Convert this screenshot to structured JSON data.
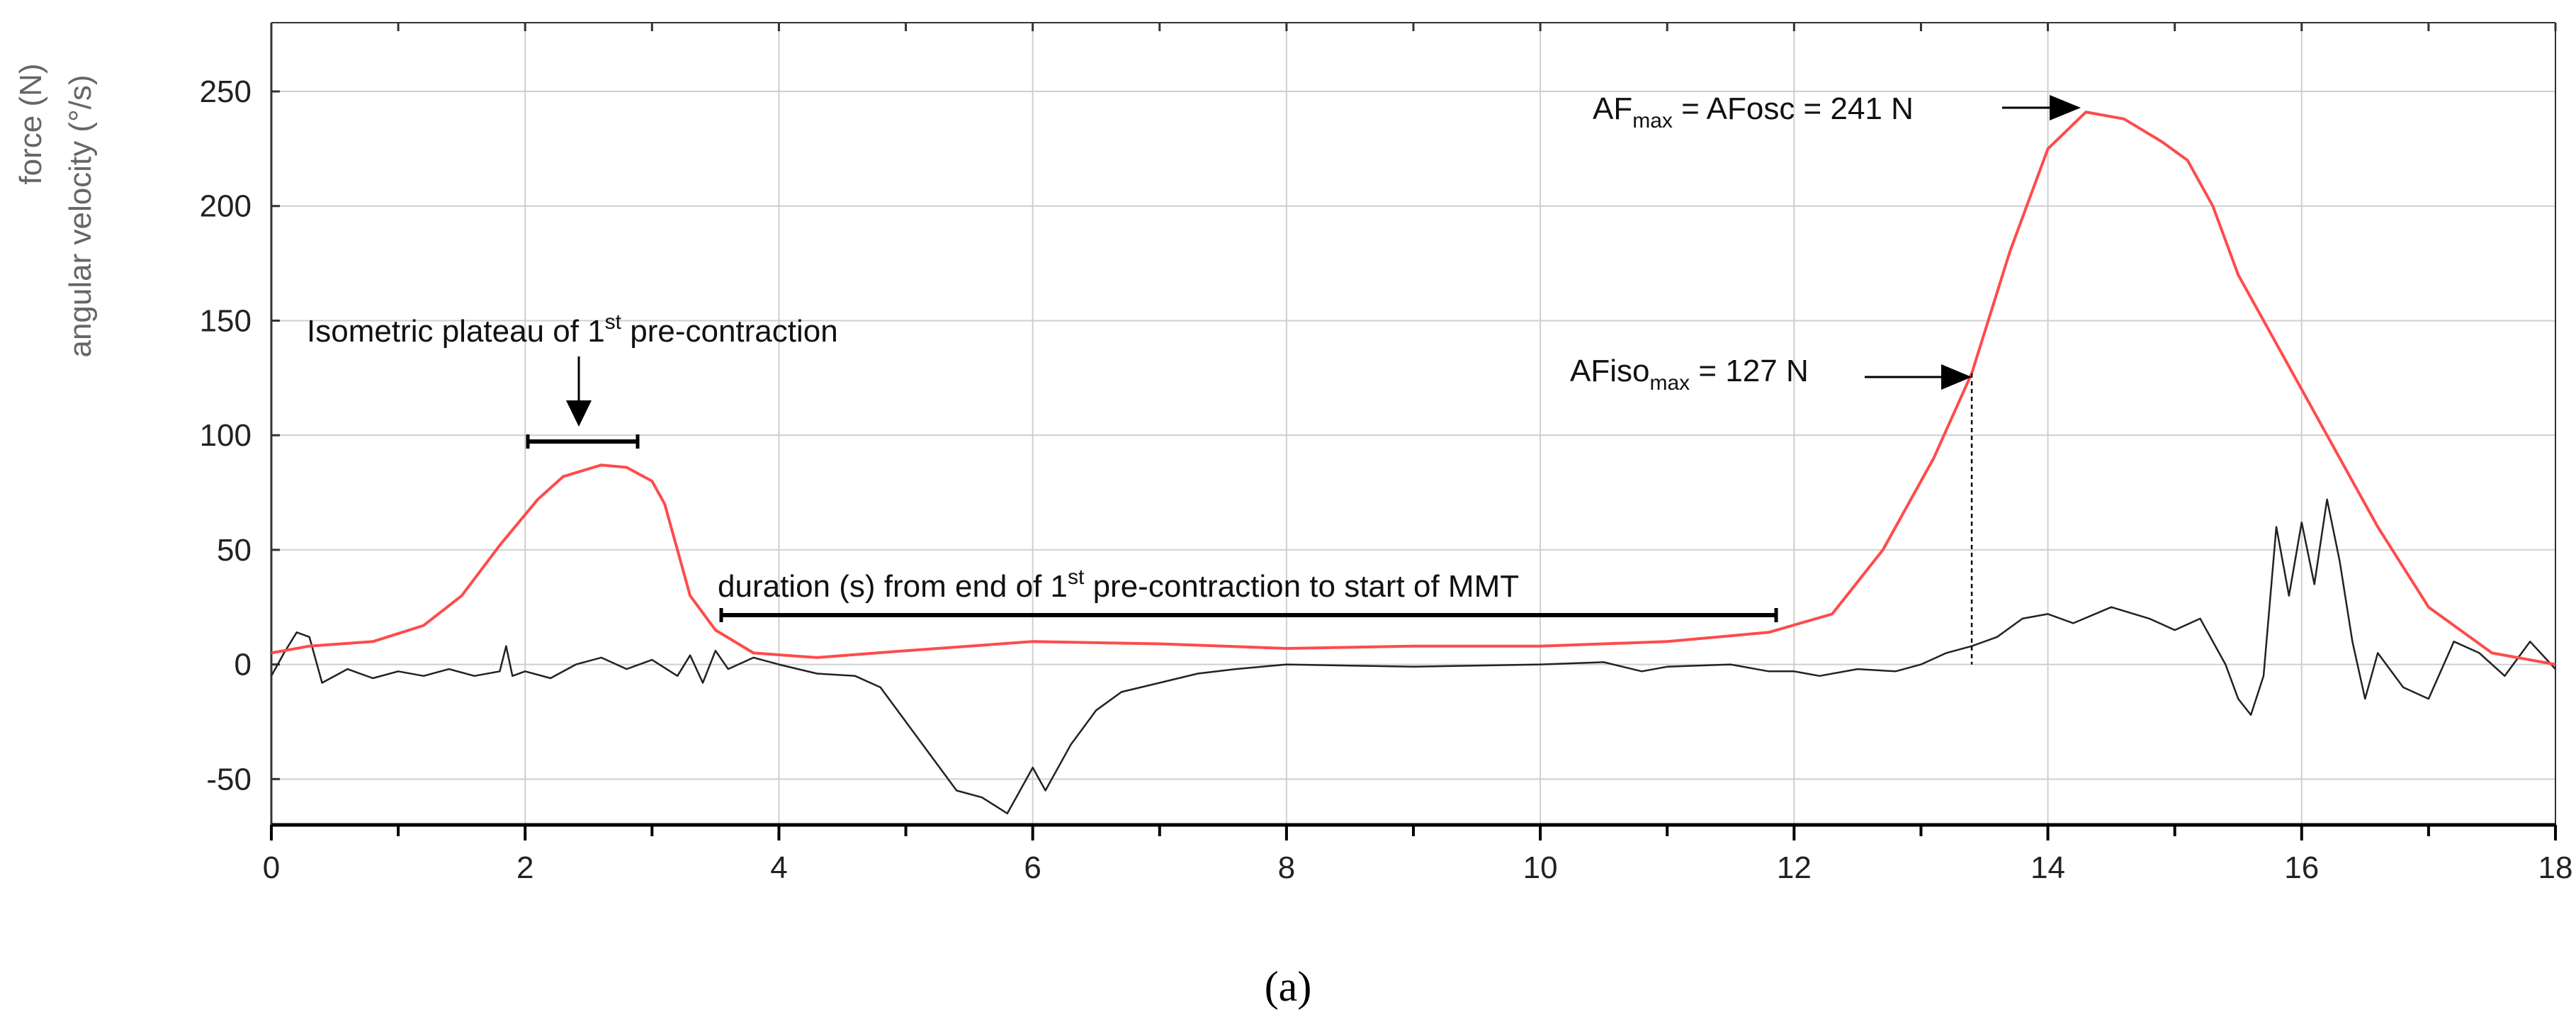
{
  "chart_data": {
    "type": "line",
    "ylabel_line1": "force (N)",
    "ylabel_line2": "angular velocity (°/s)",
    "xlim": [
      0,
      18
    ],
    "ylim": [
      -70,
      280
    ],
    "grid": true,
    "xticks": [
      0,
      2,
      4,
      6,
      8,
      10,
      12,
      14,
      16,
      18
    ],
    "yticks": [
      -50,
      0,
      50,
      100,
      150,
      200,
      250
    ],
    "series": [
      {
        "color": "#ff4b4b",
        "points": [
          [
            0,
            5
          ],
          [
            0.3,
            8
          ],
          [
            0.8,
            10
          ],
          [
            1.2,
            17
          ],
          [
            1.5,
            30
          ],
          [
            1.8,
            52
          ],
          [
            2.1,
            72
          ],
          [
            2.3,
            82
          ],
          [
            2.6,
            87
          ],
          [
            2.8,
            86
          ],
          [
            3.0,
            80
          ],
          [
            3.1,
            70
          ],
          [
            3.2,
            50
          ],
          [
            3.3,
            30
          ],
          [
            3.5,
            15
          ],
          [
            3.8,
            5
          ],
          [
            4.3,
            3
          ],
          [
            5,
            6
          ],
          [
            6,
            10
          ],
          [
            7,
            9
          ],
          [
            8,
            7
          ],
          [
            9,
            8
          ],
          [
            10,
            8
          ],
          [
            11,
            10
          ],
          [
            11.8,
            14
          ],
          [
            12.3,
            22
          ],
          [
            12.7,
            50
          ],
          [
            13.1,
            90
          ],
          [
            13.4,
            127
          ],
          [
            13.7,
            180
          ],
          [
            14.0,
            225
          ],
          [
            14.3,
            241
          ],
          [
            14.6,
            238
          ],
          [
            14.9,
            228
          ],
          [
            15.1,
            220
          ],
          [
            15.3,
            200
          ],
          [
            15.5,
            170
          ],
          [
            15.8,
            140
          ],
          [
            16.2,
            100
          ],
          [
            16.6,
            60
          ],
          [
            17.0,
            25
          ],
          [
            17.5,
            5
          ],
          [
            18,
            0
          ]
        ]
      },
      {
        "color": "#222222",
        "points": [
          [
            0,
            -5
          ],
          [
            0.1,
            5
          ],
          [
            0.2,
            14
          ],
          [
            0.3,
            12
          ],
          [
            0.4,
            -8
          ],
          [
            0.6,
            -2
          ],
          [
            0.8,
            -6
          ],
          [
            1.0,
            -3
          ],
          [
            1.2,
            -5
          ],
          [
            1.4,
            -2
          ],
          [
            1.6,
            -5
          ],
          [
            1.8,
            -3
          ],
          [
            1.85,
            8
          ],
          [
            1.9,
            -5
          ],
          [
            2.0,
            -3
          ],
          [
            2.2,
            -6
          ],
          [
            2.4,
            0
          ],
          [
            2.6,
            3
          ],
          [
            2.8,
            -2
          ],
          [
            3.0,
            2
          ],
          [
            3.2,
            -5
          ],
          [
            3.3,
            4
          ],
          [
            3.4,
            -8
          ],
          [
            3.5,
            6
          ],
          [
            3.6,
            -2
          ],
          [
            3.8,
            3
          ],
          [
            4.0,
            0
          ],
          [
            4.3,
            -4
          ],
          [
            4.6,
            -5
          ],
          [
            4.8,
            -10
          ],
          [
            5.0,
            -25
          ],
          [
            5.2,
            -40
          ],
          [
            5.4,
            -55
          ],
          [
            5.6,
            -58
          ],
          [
            5.8,
            -65
          ],
          [
            5.9,
            -55
          ],
          [
            6.0,
            -45
          ],
          [
            6.1,
            -55
          ],
          [
            6.3,
            -35
          ],
          [
            6.5,
            -20
          ],
          [
            6.7,
            -12
          ],
          [
            7.0,
            -8
          ],
          [
            7.3,
            -4
          ],
          [
            7.6,
            -2
          ],
          [
            8,
            0
          ],
          [
            9,
            -1
          ],
          [
            10,
            0
          ],
          [
            10.5,
            1
          ],
          [
            10.8,
            -3
          ],
          [
            11,
            -1
          ],
          [
            11.5,
            0
          ],
          [
            11.8,
            -3
          ],
          [
            12.0,
            -3
          ],
          [
            12.2,
            -5
          ],
          [
            12.5,
            -2
          ],
          [
            12.8,
            -3
          ],
          [
            13.0,
            0
          ],
          [
            13.2,
            5
          ],
          [
            13.4,
            8
          ],
          [
            13.6,
            12
          ],
          [
            13.8,
            20
          ],
          [
            14.0,
            22
          ],
          [
            14.2,
            18
          ],
          [
            14.5,
            25
          ],
          [
            14.8,
            20
          ],
          [
            15.0,
            15
          ],
          [
            15.2,
            20
          ],
          [
            15.4,
            0
          ],
          [
            15.5,
            -15
          ],
          [
            15.6,
            -22
          ],
          [
            15.7,
            -5
          ],
          [
            15.8,
            60
          ],
          [
            15.9,
            30
          ],
          [
            16.0,
            62
          ],
          [
            16.1,
            35
          ],
          [
            16.2,
            72
          ],
          [
            16.3,
            45
          ],
          [
            16.4,
            10
          ],
          [
            16.5,
            -15
          ],
          [
            16.6,
            5
          ],
          [
            16.8,
            -10
          ],
          [
            17.0,
            -15
          ],
          [
            17.2,
            10
          ],
          [
            17.4,
            5
          ],
          [
            17.6,
            -5
          ],
          [
            17.8,
            10
          ],
          [
            18,
            -2
          ]
        ]
      }
    ],
    "annotations": {
      "plateau": "Isometric plateau of 1st pre-contraction",
      "duration": "duration (s) from end of 1st pre-contraction to start of MMT",
      "afmax": "AFmax = AFosc = 241 N",
      "afiso": "AFisomax = 127 N"
    }
  },
  "labels": {
    "plateau_pre": "Isometric plateau of 1",
    "plateau_sup": "st",
    "plateau_post": " pre-contraction",
    "duration_pre": "duration (s) from end of 1",
    "duration_sup": "st",
    "duration_post": " pre-contraction to start of MMT",
    "afmax_a": "AF",
    "afmax_sub": "max",
    "afmax_b": " = AFosc = 241 N",
    "afiso_a": "AFiso",
    "afiso_sub": "max",
    "afiso_b": " = 127 N",
    "caption": "(a)"
  }
}
